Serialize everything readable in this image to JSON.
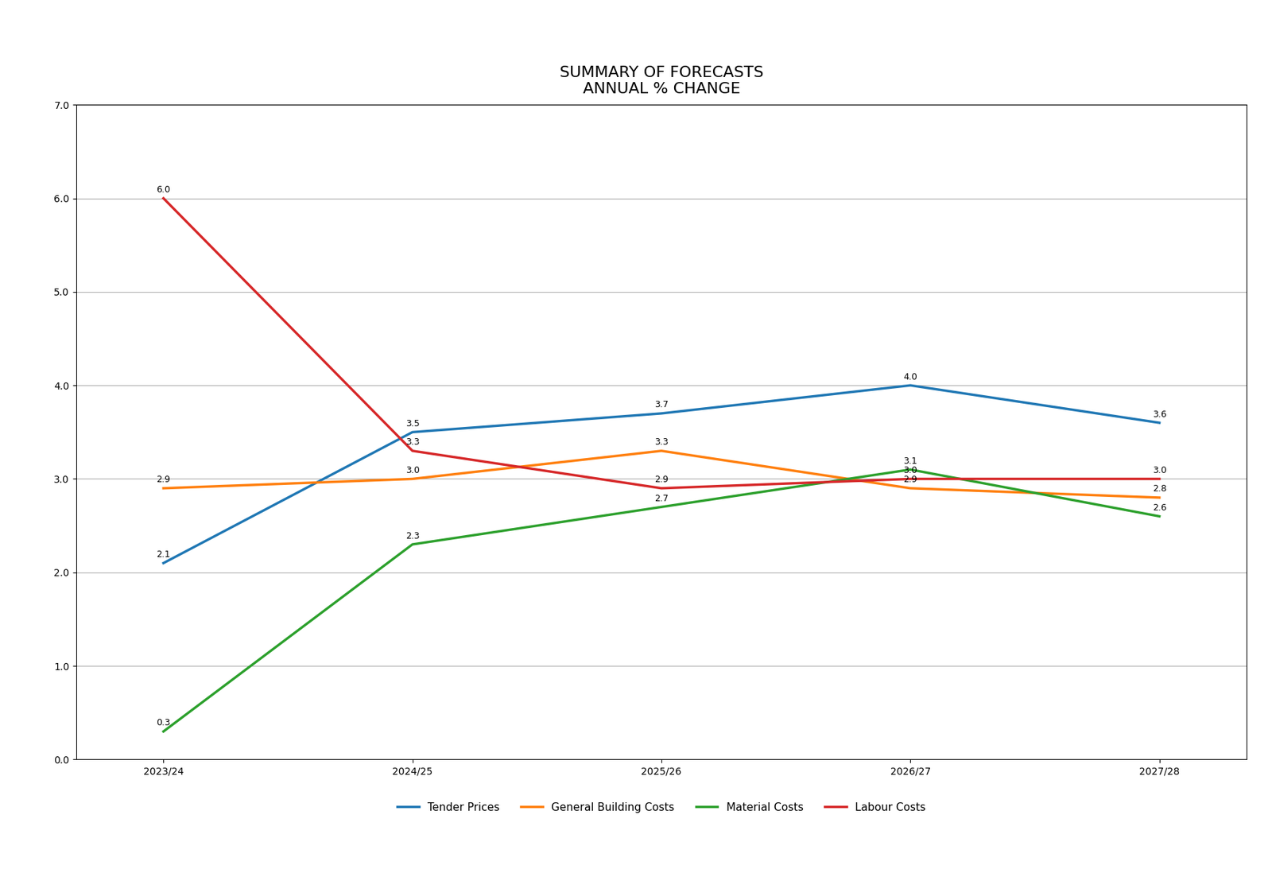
{
  "chart_data": {
    "type": "line",
    "title": "SUMMARY OF FORECASTS\nANNUAL % CHANGE",
    "categories": [
      "2023/24",
      "2024/25",
      "2025/26",
      "2026/27",
      "2027/28"
    ],
    "series": [
      {
        "name": "Tender Prices",
        "values": [
          2.1,
          3.5,
          3.7,
          4.0,
          3.6
        ]
      },
      {
        "name": "General Building Costs",
        "values": [
          2.9,
          3.0,
          3.3,
          2.9,
          2.8
        ]
      },
      {
        "name": "Material Costs",
        "values": [
          0.3,
          2.3,
          2.7,
          3.1,
          2.6
        ]
      },
      {
        "name": "Labour Costs",
        "values": [
          6.0,
          3.3,
          2.9,
          3.0,
          3.0
        ]
      }
    ],
    "ylim": [
      0.0,
      7.0
    ],
    "yticks": [
      {
        "value": 0,
        "label": "0.0"
      },
      {
        "value": 1,
        "label": "1.0"
      },
      {
        "value": 2,
        "label": "2.0"
      },
      {
        "value": 3,
        "label": "3.0"
      },
      {
        "value": 4,
        "label": "4.0"
      },
      {
        "value": 5,
        "label": "5.0"
      },
      {
        "value": 6,
        "label": "6.0"
      },
      {
        "value": 7,
        "label": "7.0"
      }
    ],
    "grid": "y",
    "legend": "upper center",
    "data_labels": true
  }
}
